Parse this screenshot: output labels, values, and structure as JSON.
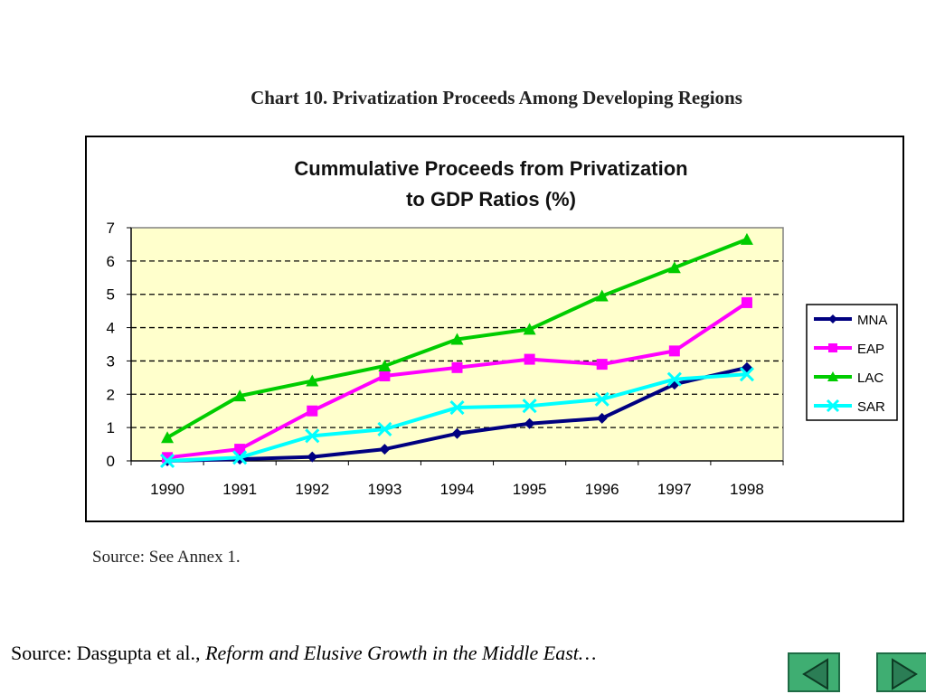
{
  "slide": {
    "heading": "Chart 10.  Privatization Proceeds Among Developing Regions",
    "source_note": "Source: See Annex 1.",
    "footer_prefix": "Source: Dasgupta et al., ",
    "footer_italic": "Reform and Elusive Growth in the Middle East…"
  },
  "nav": {
    "prev_icon": "triangle-left-icon",
    "next_icon": "triangle-right-icon",
    "button_color": "#3fae72"
  },
  "chart_data": {
    "type": "line",
    "title_lines": [
      "Cummulative Proceeds from Privatization",
      "to GDP Ratios (%)"
    ],
    "categories": [
      "1990",
      "1991",
      "1992",
      "1993",
      "1994",
      "1995",
      "1996",
      "1997",
      "1998"
    ],
    "ylim": [
      0,
      7
    ],
    "yticks": [
      0,
      1,
      2,
      3,
      4,
      5,
      6,
      7
    ],
    "grid": "dashed horizontal",
    "plot_background": "#ffffcc",
    "legend_position": "right",
    "series": [
      {
        "name": "MNA",
        "color": "#000080",
        "marker": "diamond",
        "values": [
          0.0,
          0.05,
          0.12,
          0.35,
          0.82,
          1.12,
          1.28,
          2.3,
          2.8
        ]
      },
      {
        "name": "EAP",
        "color": "#ff00ff",
        "marker": "square",
        "values": [
          0.1,
          0.35,
          1.5,
          2.55,
          2.8,
          3.05,
          2.9,
          3.3,
          4.75
        ]
      },
      {
        "name": "LAC",
        "color": "#00cc00",
        "marker": "triangle",
        "values": [
          0.7,
          1.95,
          2.4,
          2.85,
          3.65,
          3.95,
          4.95,
          5.8,
          6.65
        ]
      },
      {
        "name": "SAR",
        "color": "#00ffff",
        "marker": "x",
        "values": [
          0.0,
          0.1,
          0.75,
          0.95,
          1.6,
          1.65,
          1.85,
          2.45,
          2.6
        ]
      }
    ]
  }
}
